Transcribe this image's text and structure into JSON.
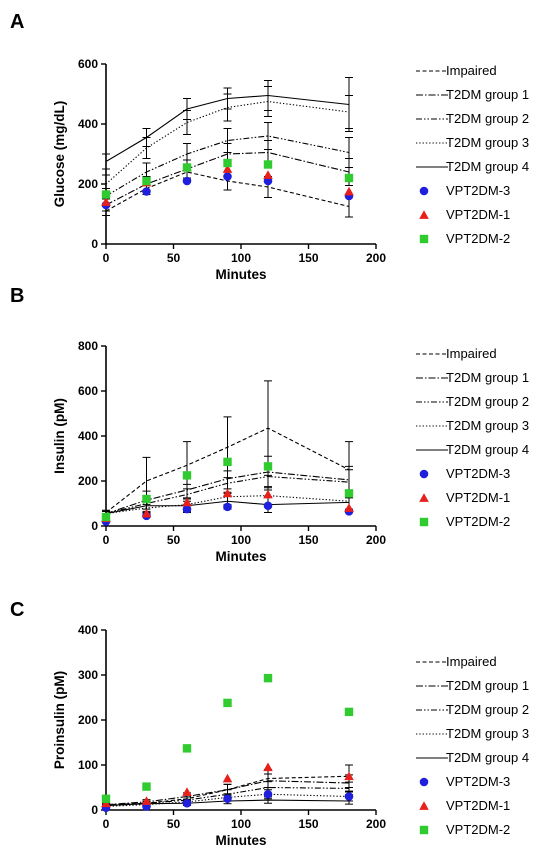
{
  "colors": {
    "VPT2DM-3": "#1f1fdc",
    "VPT2DM-1": "#e8201c",
    "VPT2DM-2": "#2fcb2f",
    "lines": "#000000"
  },
  "legend_items": [
    {
      "name": "Impaired",
      "style": "dashed"
    },
    {
      "name": "T2DM group 1",
      "style": "dashdot"
    },
    {
      "name": "T2DM group 2",
      "style": "dashdotdot"
    },
    {
      "name": "T2DM group 3",
      "style": "dotted"
    },
    {
      "name": "T2DM group 4",
      "style": "solid"
    },
    {
      "name": "VPT2DM-3",
      "style": "circle"
    },
    {
      "name": "VPT2DM-1",
      "style": "triangle"
    },
    {
      "name": "VPT2DM-2",
      "style": "square"
    }
  ],
  "chart_data": [
    {
      "panel": "A",
      "type": "line",
      "xlabel": "Minutes",
      "ylabel": "Glucose (mg/dL)",
      "xlim": [
        0,
        200
      ],
      "ylim": [
        0,
        600
      ],
      "xticks": [
        0,
        50,
        100,
        150,
        200
      ],
      "yticks": [
        0,
        200,
        400,
        600
      ],
      "legend_position": "right",
      "x": [
        0,
        30,
        60,
        90,
        120,
        180
      ],
      "series": [
        {
          "name": "Impaired",
          "kind": "line",
          "style": "dashed",
          "values": [
            110,
            185,
            240,
            210,
            190,
            125
          ],
          "errors": [
            15,
            20,
            25,
            30,
            35,
            35
          ]
        },
        {
          "name": "T2DM group 1",
          "kind": "line",
          "style": "dashdot",
          "values": [
            130,
            200,
            250,
            300,
            305,
            240
          ],
          "errors": [
            20,
            25,
            30,
            35,
            40,
            45
          ]
        },
        {
          "name": "T2DM group 2",
          "kind": "line",
          "style": "dashdotdot",
          "values": [
            160,
            240,
            300,
            345,
            360,
            305
          ],
          "errors": [
            25,
            30,
            35,
            40,
            45,
            50
          ]
        },
        {
          "name": "T2DM group 3",
          "kind": "line",
          "style": "dotted",
          "values": [
            200,
            320,
            405,
            455,
            475,
            440
          ],
          "errors": [
            30,
            35,
            40,
            45,
            50,
            55
          ]
        },
        {
          "name": "T2DM group 4",
          "kind": "line",
          "style": "solid",
          "values": [
            275,
            355,
            450,
            485,
            495,
            465
          ],
          "errors": [
            25,
            30,
            35,
            35,
            50,
            90
          ]
        },
        {
          "name": "VPT2DM-3",
          "kind": "scatter",
          "marker": "circle",
          "values": [
            130,
            175,
            210,
            225,
            210,
            160
          ]
        },
        {
          "name": "VPT2DM-1",
          "kind": "scatter",
          "marker": "triangle",
          "values": [
            140,
            205,
            255,
            250,
            230,
            175
          ]
        },
        {
          "name": "VPT2DM-2",
          "kind": "scatter",
          "marker": "square",
          "values": [
            165,
            210,
            255,
            270,
            265,
            220
          ]
        }
      ]
    },
    {
      "panel": "B",
      "type": "line",
      "xlabel": "Minutes",
      "ylabel": "Insulin (pM)",
      "xlim": [
        0,
        200
      ],
      "ylim": [
        0,
        800
      ],
      "xticks": [
        0,
        50,
        100,
        150,
        200
      ],
      "yticks": [
        0,
        200,
        400,
        600,
        800
      ],
      "legend_position": "right",
      "x": [
        0,
        30,
        60,
        90,
        120,
        180
      ],
      "series": [
        {
          "name": "Impaired",
          "kind": "line",
          "style": "dashed",
          "values": [
            60,
            200,
            270,
            350,
            435,
            250
          ],
          "errors": [
            10,
            105,
            105,
            135,
            210,
            125
          ]
        },
        {
          "name": "T2DM group 1",
          "kind": "line",
          "style": "dashdot",
          "values": [
            55,
            115,
            160,
            210,
            240,
            205
          ],
          "errors": [
            10,
            40,
            50,
            60,
            70,
            60
          ]
        },
        {
          "name": "T2DM group 2",
          "kind": "line",
          "style": "dashdotdot",
          "values": [
            55,
            100,
            140,
            190,
            220,
            195
          ],
          "errors": [
            10,
            35,
            45,
            55,
            60,
            55
          ]
        },
        {
          "name": "T2DM group 3",
          "kind": "line",
          "style": "dotted",
          "values": [
            55,
            80,
            95,
            130,
            135,
            110
          ],
          "errors": [
            10,
            25,
            30,
            35,
            40,
            35
          ]
        },
        {
          "name": "T2DM group 4",
          "kind": "line",
          "style": "solid",
          "values": [
            55,
            90,
            90,
            110,
            95,
            105
          ],
          "errors": [
            10,
            30,
            30,
            35,
            35,
            35
          ]
        },
        {
          "name": "VPT2DM-3",
          "kind": "scatter",
          "marker": "circle",
          "values": [
            20,
            45,
            75,
            85,
            90,
            65
          ]
        },
        {
          "name": "VPT2DM-1",
          "kind": "scatter",
          "marker": "triangle",
          "values": [
            35,
            55,
            105,
            145,
            140,
            80
          ]
        },
        {
          "name": "VPT2DM-2",
          "kind": "scatter",
          "marker": "square",
          "values": [
            40,
            120,
            225,
            285,
            265,
            145
          ]
        }
      ]
    },
    {
      "panel": "C",
      "type": "line",
      "xlabel": "Minutes",
      "ylabel": "Proinsulin (pM)",
      "xlim": [
        0,
        200
      ],
      "ylim": [
        0,
        400
      ],
      "xticks": [
        0,
        50,
        100,
        150,
        200
      ],
      "yticks": [
        0,
        100,
        200,
        300,
        400
      ],
      "legend_position": "right",
      "x": [
        0,
        30,
        60,
        90,
        120,
        180
      ],
      "series": [
        {
          "name": "Impaired",
          "kind": "line",
          "style": "dashed",
          "values": [
            12,
            15,
            25,
            45,
            70,
            75
          ],
          "errors": [
            4,
            5,
            8,
            12,
            20,
            25
          ]
        },
        {
          "name": "T2DM group 1",
          "kind": "line",
          "style": "dashdot",
          "values": [
            12,
            18,
            30,
            45,
            65,
            60
          ],
          "errors": [
            4,
            5,
            8,
            12,
            15,
            18
          ]
        },
        {
          "name": "T2DM group 2",
          "kind": "line",
          "style": "dashdotdot",
          "values": [
            10,
            15,
            22,
            35,
            50,
            48
          ],
          "errors": [
            3,
            5,
            7,
            10,
            13,
            14
          ]
        },
        {
          "name": "T2DM group 3",
          "kind": "line",
          "style": "dotted",
          "values": [
            8,
            12,
            18,
            28,
            35,
            30
          ],
          "errors": [
            3,
            4,
            6,
            8,
            10,
            10
          ]
        },
        {
          "name": "T2DM group 4",
          "kind": "line",
          "style": "solid",
          "values": [
            10,
            14,
            15,
            20,
            22,
            20
          ],
          "errors": [
            3,
            4,
            5,
            6,
            7,
            7
          ]
        },
        {
          "name": "VPT2DM-3",
          "kind": "scatter",
          "marker": "circle",
          "values": [
            5,
            8,
            15,
            25,
            35,
            30
          ]
        },
        {
          "name": "VPT2DM-1",
          "kind": "scatter",
          "marker": "triangle",
          "values": [
            15,
            20,
            40,
            70,
            95,
            75
          ]
        },
        {
          "name": "VPT2DM-2",
          "kind": "scatter",
          "marker": "square",
          "values": [
            25,
            52,
            137,
            238,
            293,
            218
          ]
        }
      ]
    }
  ]
}
